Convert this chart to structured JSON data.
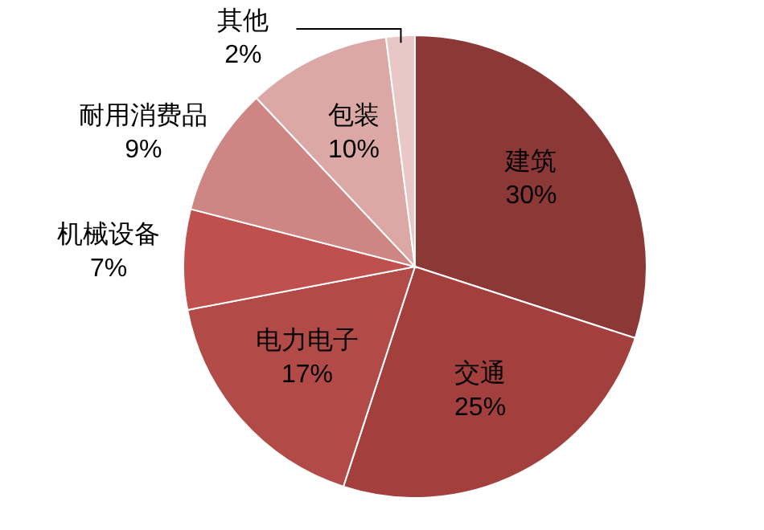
{
  "chart_data": {
    "type": "pie",
    "categories": [
      "建筑",
      "交通",
      "电力电子",
      "机械设备",
      "耐用消费品",
      "包装",
      "其他"
    ],
    "values": [
      30,
      25,
      17,
      7,
      9,
      10,
      2
    ],
    "colors": [
      "#8c3836",
      "#a3403e",
      "#b24a48",
      "#c0504d",
      "#cd8683",
      "#dba8a6",
      "#e8c7c6"
    ],
    "value_labels": [
      "30%",
      "25%",
      "17%",
      "7%",
      "9%",
      "10%",
      "2%"
    ]
  }
}
